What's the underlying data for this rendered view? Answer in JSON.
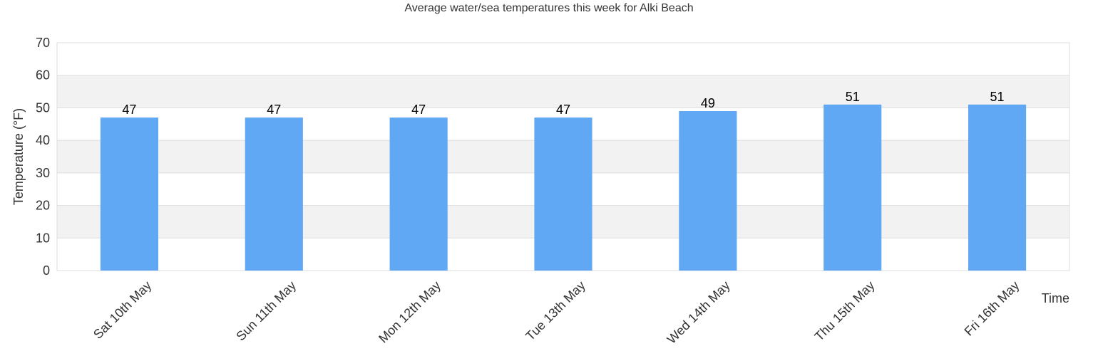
{
  "chart_data": {
    "type": "bar",
    "title": "Average water/sea temperatures this week for Alki Beach",
    "xlabel": "Time",
    "ylabel": "Temperature (°F)",
    "categories": [
      "Sat 10th May",
      "Sun 11th May",
      "Mon 12th May",
      "Tue 13th May",
      "Wed 14th May",
      "Thu 15th May",
      "Fri 16th May"
    ],
    "values": [
      47,
      47,
      47,
      47,
      49,
      51,
      51
    ],
    "value_labels": [
      "47",
      "47",
      "47",
      "47",
      "49",
      "51",
      "51"
    ],
    "ylim": [
      0,
      70
    ],
    "yticks": [
      "0",
      "10",
      "20",
      "30",
      "40",
      "50",
      "60",
      "70"
    ],
    "grid": true,
    "legend": "none",
    "colors": {
      "bar": "#60a7f4",
      "band": "#f2f2f2",
      "gridline": "#dddddd"
    }
  }
}
